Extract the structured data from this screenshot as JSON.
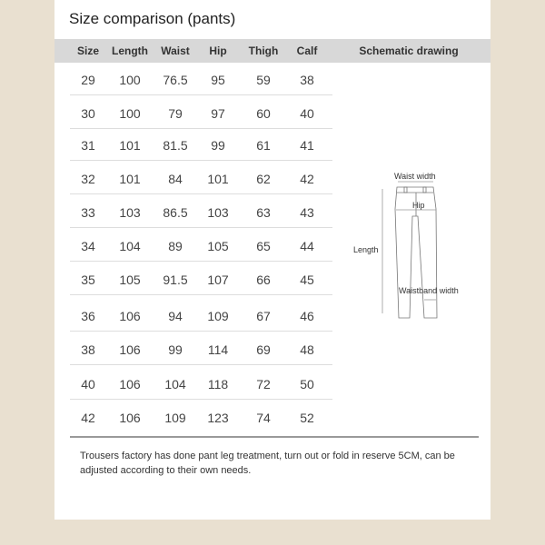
{
  "title": "Size comparison (pants)",
  "headers": [
    "Size",
    "Length",
    "Waist",
    "Hip",
    "Thigh",
    "Calf",
    "Schematic drawing"
  ],
  "rows": [
    [
      "29",
      "100",
      "76.5",
      "95",
      "59",
      "38"
    ],
    [
      "30",
      "100",
      "79",
      "97",
      "60",
      "40"
    ],
    [
      "31",
      "101",
      "81.5",
      "99",
      "61",
      "41"
    ],
    [
      "32",
      "101",
      "84",
      "101",
      "62",
      "42"
    ],
    [
      "33",
      "103",
      "86.5",
      "103",
      "63",
      "43"
    ],
    [
      "34",
      "104",
      "89",
      "105",
      "65",
      "44"
    ],
    [
      "35",
      "105",
      "91.5",
      "107",
      "66",
      "45"
    ],
    [
      "36",
      "106",
      "94",
      "109",
      "67",
      "46"
    ],
    [
      "38",
      "106",
      "99",
      "114",
      "69",
      "48"
    ],
    [
      "40",
      "106",
      "104",
      "118",
      "72",
      "50"
    ],
    [
      "42",
      "106",
      "109",
      "123",
      "74",
      "52"
    ]
  ],
  "drawing": {
    "waist": "Waist width",
    "hip": "Hip",
    "length": "Length",
    "waistband": "Waistband width"
  },
  "note": "Trousers factory has done pant leg treatment, turn out or fold in reserve 5CM, can be adjusted according to their own needs."
}
